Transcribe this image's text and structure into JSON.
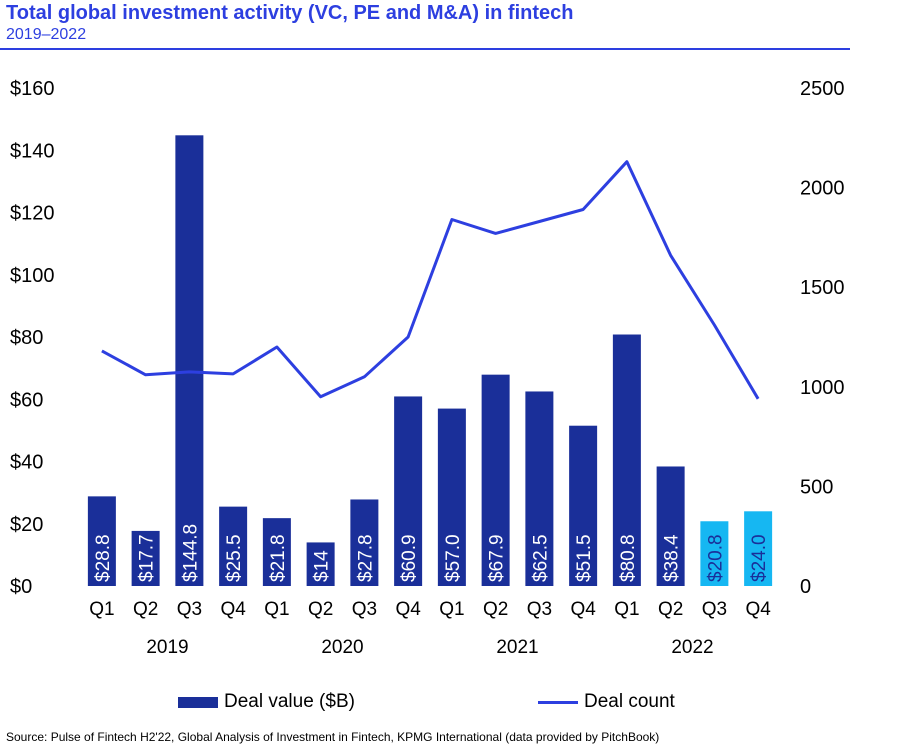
{
  "header": {
    "title": "Total global investment activity (VC, PE and M&A) in fintech",
    "subtitle": "2019–2022"
  },
  "legend": {
    "bar_label": "Deal value ($B)",
    "line_label": "Deal count"
  },
  "source": "Source: Pulse of Fintech H2'22, Global Analysis of Investment in Fintech, KPMG International (data provided by PitchBook)",
  "colors": {
    "accent": "#2d3fe0",
    "bar": "#1a2f99",
    "bar_highlight": "#16b7f2",
    "line": "#2d3fe0"
  },
  "chart_data": {
    "type": "bar",
    "categories": [
      "Q1",
      "Q2",
      "Q3",
      "Q4",
      "Q1",
      "Q2",
      "Q3",
      "Q4",
      "Q1",
      "Q2",
      "Q3",
      "Q4",
      "Q1",
      "Q2",
      "Q3",
      "Q4"
    ],
    "year_groups": [
      {
        "label": "2019",
        "start": 0,
        "end": 3
      },
      {
        "label": "2020",
        "start": 4,
        "end": 7
      },
      {
        "label": "2021",
        "start": 8,
        "end": 11
      },
      {
        "label": "2022",
        "start": 12,
        "end": 15
      }
    ],
    "series": [
      {
        "name": "Deal value ($B)",
        "type": "bar",
        "axis": "left",
        "values": [
          28.8,
          17.7,
          144.8,
          25.5,
          21.8,
          14.0,
          27.8,
          60.9,
          57.0,
          67.9,
          62.5,
          51.5,
          80.8,
          38.4,
          20.8,
          24.0
        ],
        "labels": [
          "$28.8",
          "$17.7",
          "$144.8",
          "$25.5",
          "$21.8",
          "$14",
          "$27.8",
          "$60.9",
          "$57.0",
          "$67.9",
          "$62.5",
          "$51.5",
          "$80.8",
          "$38.4",
          "$20.8",
          "$24.0"
        ],
        "highlight": [
          false,
          false,
          false,
          false,
          false,
          false,
          false,
          false,
          false,
          false,
          false,
          false,
          false,
          false,
          true,
          true
        ]
      },
      {
        "name": "Deal count",
        "type": "line",
        "axis": "right",
        "values": [
          1180,
          1060,
          1075,
          1065,
          1200,
          950,
          1050,
          1250,
          1840,
          1770,
          1830,
          1890,
          2130,
          1660,
          1310,
          940
        ]
      }
    ],
    "y_left": {
      "min": 0,
      "max": 160,
      "ticks": [
        0,
        20,
        40,
        60,
        80,
        100,
        120,
        140,
        160
      ],
      "tick_labels": [
        "$0",
        "$20",
        "$40",
        "$60",
        "$80",
        "$100",
        "$120",
        "$140",
        "$160"
      ]
    },
    "y_right": {
      "min": 0,
      "max": 2500,
      "ticks": [
        0,
        500,
        1000,
        1500,
        2000,
        2500
      ],
      "tick_labels": [
        "0",
        "500",
        "1000",
        "1500",
        "2000",
        "2500"
      ]
    },
    "grid": false,
    "legend_position": "bottom"
  }
}
